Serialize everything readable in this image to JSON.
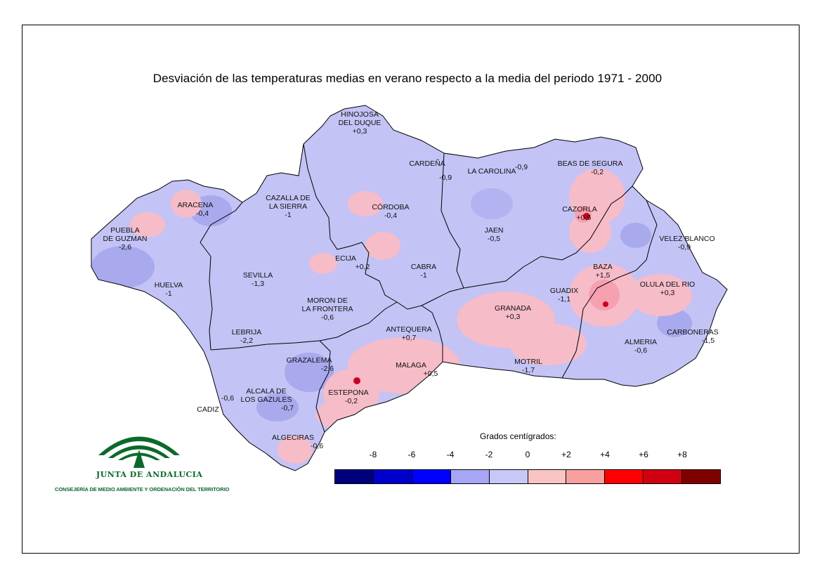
{
  "title": "Desviación de las temperaturas medias en verano respecto a la media del periodo 1971 - 2000",
  "places": [
    {
      "name": "HINOJOSA\nDEL DUQUE",
      "value": "+0,3",
      "id": "hinojosa"
    },
    {
      "name": "CARDEÑA",
      "value": "-0,9",
      "id": "cardena"
    },
    {
      "name": "LA CAROLINA",
      "value": "-0,9",
      "id": "la-carolina"
    },
    {
      "name": "BEAS DE SEGURA",
      "value": "-0,2",
      "id": "beas-de-segura"
    },
    {
      "name": "ARACENA",
      "value": "-0,4",
      "id": "aracena"
    },
    {
      "name": "CAZALLA DE\nLA SIERRA",
      "value": "-1",
      "id": "cazalla"
    },
    {
      "name": "CÓRDOBA",
      "value": "-0,4",
      "id": "cordoba"
    },
    {
      "name": "CAZORLA",
      "value": "+0,6",
      "id": "cazorla"
    },
    {
      "name": "PUEBLA\nDE GUZMAN",
      "value": "-2,6",
      "id": "puebla-de-guzman"
    },
    {
      "name": "JAEN",
      "value": "-0,5",
      "id": "jaen"
    },
    {
      "name": "VELEZ BLANCO",
      "value": "-0,9",
      "id": "velez-blanco"
    },
    {
      "name": "ECIJA",
      "value": "+0,2",
      "id": "ecija"
    },
    {
      "name": "CABRA",
      "value": "-1",
      "id": "cabra"
    },
    {
      "name": "BAZA",
      "value": "+1,5",
      "id": "baza"
    },
    {
      "name": "SEVILLA",
      "value": "-1,3",
      "id": "sevilla"
    },
    {
      "name": "HUELVA",
      "value": "-1",
      "id": "huelva"
    },
    {
      "name": "OLULA DEL RIO",
      "value": "+0,3",
      "id": "olula-del-rio"
    },
    {
      "name": "GUADIX",
      "value": "-1,1",
      "id": "guadix"
    },
    {
      "name": "MORON DE\nLA FRONTERA",
      "value": "-0,6",
      "id": "moron"
    },
    {
      "name": "GRANADA",
      "value": "+0,3",
      "id": "granada"
    },
    {
      "name": "ANTEQUERA",
      "value": "+0,7",
      "id": "antequera"
    },
    {
      "name": "LEBRIJA",
      "value": "-2,2",
      "id": "lebrija"
    },
    {
      "name": "CARBONERAS",
      "value": "-1,5",
      "id": "carboneras"
    },
    {
      "name": "ALMERIA",
      "value": "-0,6",
      "id": "almeria"
    },
    {
      "name": "GRAZALEMA",
      "value": "-2,6",
      "id": "grazalema"
    },
    {
      "name": "MALAGA",
      "value": "+0,5",
      "id": "malaga"
    },
    {
      "name": "MOTRIL",
      "value": "-1,7",
      "id": "motril"
    },
    {
      "name": "ALCALA DE\nLOS GAZULES",
      "value": "-0,7",
      "id": "alcala"
    },
    {
      "name": "ESTEPONA",
      "value": "-0,2",
      "id": "estepona"
    },
    {
      "name": "CADIZ",
      "value": "-0,6",
      "id": "cadiz"
    },
    {
      "name": "ALGECIRAS",
      "value": "-0,6",
      "id": "algeciras"
    }
  ],
  "legend": {
    "caption": "Grados centígrados:",
    "ticks": [
      "-8",
      "-6",
      "-4",
      "-2",
      "0",
      "+2",
      "+4",
      "+6",
      "+8"
    ],
    "tick_values": [
      -8,
      -6,
      -4,
      -2,
      0,
      2,
      4,
      6,
      8
    ],
    "colors": [
      "#00007f",
      "#0000cc",
      "#0000ff",
      "#a6a6f4",
      "#c8c8f8",
      "#fbc4c4",
      "#f8a0a0",
      "#ff0000",
      "#d00010",
      "#800000"
    ]
  },
  "colors": {
    "land_base": "#c3c3f6",
    "warm_area": "#f6bcc8",
    "cool_area": "#a9a9ee",
    "hot_spot": "#cc0020",
    "logo_green": "#0a6a2a"
  },
  "logo": {
    "name": "JUNTA DE ANDALUCIA",
    "subtitle": "CONSEJERÍA DE MEDIO AMBIENTE Y ORDENACIÓN DEL TERRITORIO"
  }
}
